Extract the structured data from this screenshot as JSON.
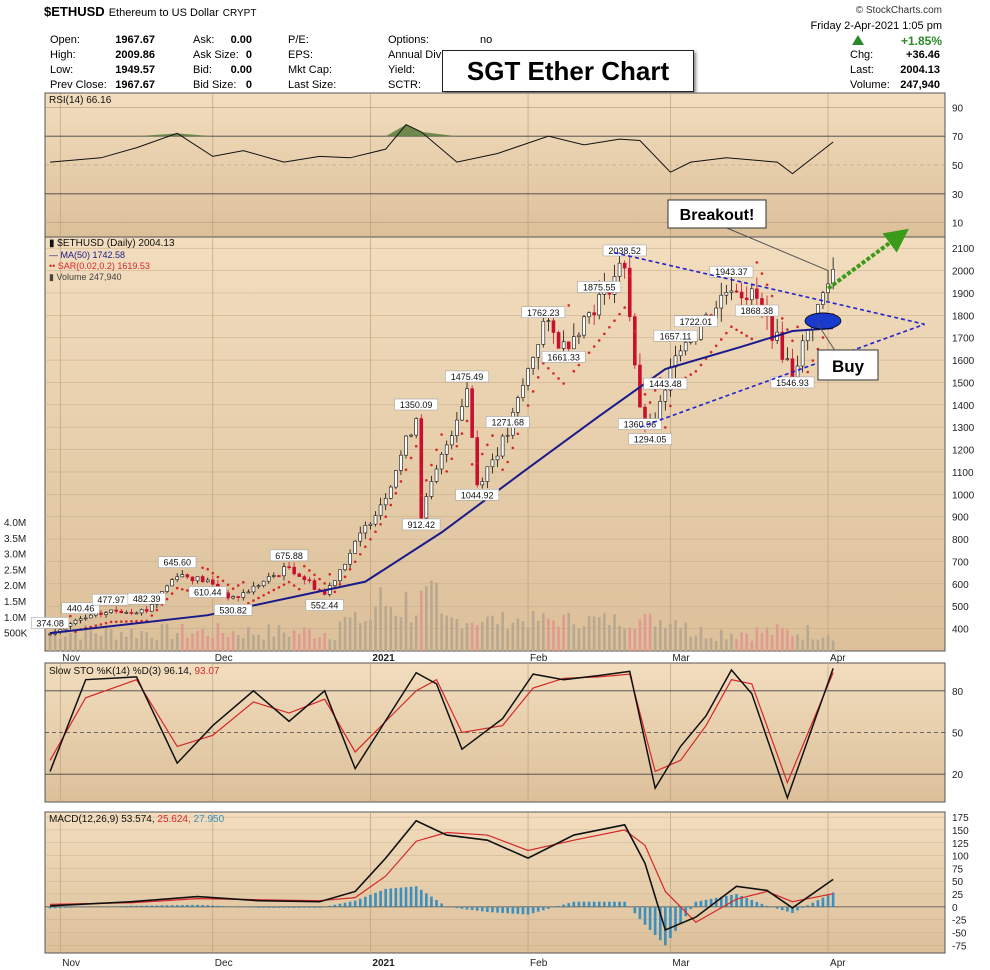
{
  "header": {
    "symbol": "$ETHUSD",
    "description": "Ethereum to US Dollar",
    "exchange": "CRYPT",
    "site": "© StockCharts.com",
    "datetime": "Friday   2-Apr-2021  1:05 pm",
    "title_box": "SGT Ether Chart",
    "quote_left": [
      {
        "label": "Open:",
        "value": "1967.67"
      },
      {
        "label": "High:",
        "value": "2009.86"
      },
      {
        "label": "Low:",
        "value": "1949.57"
      },
      {
        "label": "Prev Close:",
        "value": "1967.67"
      }
    ],
    "quote_mid": [
      {
        "label": "Ask:",
        "value": "0.00"
      },
      {
        "label": "Ask Size:",
        "value": "0"
      },
      {
        "label": "Bid:",
        "value": "0.00"
      },
      {
        "label": "Bid Size:",
        "value": "0"
      }
    ],
    "quote_right": [
      {
        "label": "P/E:",
        "value": ""
      },
      {
        "label": "EPS:",
        "value": ""
      },
      {
        "label": "Mkt Cap:",
        "value": ""
      },
      {
        "label": "Last Size:",
        "value": ""
      }
    ],
    "quote_far": [
      {
        "label": "Options:",
        "value": "no"
      },
      {
        "label": "Annual Div",
        "value": ""
      },
      {
        "label": "Yield:",
        "value": ""
      },
      {
        "label": "SCTR:",
        "value": ""
      }
    ],
    "change_pct": "+1.85%",
    "stats": [
      {
        "label": "Chg:",
        "value": "+36.46"
      },
      {
        "label": "Last:",
        "value": "2004.13"
      },
      {
        "label": "Volume:",
        "value": "247,940"
      }
    ]
  },
  "colors": {
    "panel_bg": "#e2c7a0",
    "panel_bg_top": "#f2ddbe",
    "rsi_fill": "#5b7a3a",
    "ma_line": "#1a1a8c",
    "sar_dots": "#d62728",
    "trend_lines": "#2222cc",
    "breakout_arrow": "#3a9a1a",
    "volume_up": "#b8a890",
    "volume_down": "#e09a90",
    "macd_hist": "#3a90c0",
    "signal_line": "#d62728"
  },
  "chart_data": [
    {
      "type": "line",
      "name": "RSI panel",
      "legend": "RSI(14) 66.16",
      "ylim": [
        0,
        100
      ],
      "y_ticks": [
        "90",
        "70",
        "50",
        "30",
        "10"
      ],
      "reference_levels": [
        70,
        30
      ],
      "x": [
        "2020-10-30",
        "2020-11-09",
        "2020-11-16",
        "2020-11-24",
        "2020-12-01",
        "2020-12-07",
        "2020-12-15",
        "2020-12-22",
        "2020-12-28",
        "2021-01-04",
        "2021-01-08",
        "2021-01-11",
        "2021-01-18",
        "2021-01-26",
        "2021-02-05",
        "2021-02-12",
        "2021-02-19",
        "2021-02-23",
        "2021-03-01",
        "2021-03-05",
        "2021-03-12",
        "2021-03-22",
        "2021-03-25",
        "2021-04-02"
      ],
      "values": [
        52,
        55,
        62,
        72,
        56,
        60,
        52,
        56,
        55,
        61,
        78,
        73,
        52,
        58,
        70,
        64,
        68,
        67,
        45,
        52,
        55,
        52,
        44,
        66
      ]
    },
    {
      "type": "line",
      "name": "price panel",
      "legend": [
        "$ETHUSD (Daily) 2004.13",
        "MA(50) 1742.58",
        "SAR(0.02,0.2) 1619.53",
        "Volume 247,940"
      ],
      "ylim": [
        300,
        2150
      ],
      "y_ticks": [
        "2100",
        "2000",
        "1900",
        "1800",
        "1700",
        "1600",
        "1500",
        "1400",
        "1300",
        "1200",
        "1100",
        "1000",
        "900",
        "800",
        "700",
        "600",
        "500",
        "400"
      ],
      "volume_ticks": [
        "4.0M",
        "3.5M",
        "3.0M",
        "2.5M",
        "2.0M",
        "1.5M",
        "1.0M",
        "500K"
      ],
      "x_labels": [
        "Nov",
        "Dec",
        "2021",
        "Feb",
        "Mar",
        "Apr"
      ],
      "price_points": [
        [
          "2020-10-30",
          374.08
        ],
        [
          "2020-11-05",
          440.46
        ],
        [
          "2020-11-11",
          477.97
        ],
        [
          "2020-11-18",
          482.39
        ],
        [
          "2020-11-24",
          645.6
        ],
        [
          "2020-11-30",
          610.44
        ],
        [
          "2020-12-05",
          530.82
        ],
        [
          "2020-12-16",
          675.88
        ],
        [
          "2020-12-23",
          552.44
        ],
        [
          "2021-01-04",
          1000
        ],
        [
          "2021-01-10",
          1350.09
        ],
        [
          "2021-01-11",
          912.42
        ],
        [
          "2021-01-20",
          1475.49
        ],
        [
          "2021-01-22",
          1044.92
        ],
        [
          "2021-01-28",
          1271.68
        ],
        [
          "2021-02-04",
          1762.23
        ],
        [
          "2021-02-08",
          1661.33
        ],
        [
          "2021-02-15",
          1875.55
        ],
        [
          "2021-02-20",
          2038.52
        ],
        [
          "2021-02-23",
          1360.96
        ],
        [
          "2021-02-25",
          1294.05
        ],
        [
          "2021-02-28",
          1443.48
        ],
        [
          "2021-03-02",
          1657.11
        ],
        [
          "2021-03-06",
          1722.01
        ],
        [
          "2021-03-13",
          1943.37
        ],
        [
          "2021-03-18",
          1868.38
        ],
        [
          "2021-03-25",
          1546.93
        ],
        [
          "2021-04-02",
          2004.13
        ]
      ],
      "ma50_points": [
        [
          "2020-10-30",
          380
        ],
        [
          "2020-11-30",
          460
        ],
        [
          "2020-12-31",
          610
        ],
        [
          "2021-01-15",
          830
        ],
        [
          "2021-01-31",
          1100
        ],
        [
          "2021-02-15",
          1350
        ],
        [
          "2021-02-28",
          1560
        ],
        [
          "2021-03-15",
          1660
        ],
        [
          "2021-03-25",
          1730
        ],
        [
          "2021-04-02",
          1742.58
        ]
      ],
      "price_labels": [
        "645.60",
        "610.44",
        "675.88",
        "477.97",
        "440.46",
        "482.39",
        "530.82",
        "552.44",
        "374.08",
        "1350.09",
        "912.42",
        "1475.49",
        "1044.92",
        "1207.77",
        "1271.68",
        "1494.84",
        "1762.23",
        "1661.33",
        "1875.55",
        "2038.52",
        "1360.96",
        "1294.05",
        "1657.11",
        "1443.48",
        "1722.01",
        "1943.37",
        "1868.38",
        "1546.93"
      ],
      "annotations": [
        "Breakout!",
        "Buy"
      ]
    },
    {
      "type": "line",
      "name": "Slow STO panel",
      "legend": [
        "Slow STO %K(14) %D(3) 96.14,",
        "93.07"
      ],
      "ylim": [
        0,
        100
      ],
      "y_ticks": [
        "80",
        "50",
        "20"
      ],
      "x": [
        "2020-10-30",
        "2020-11-06",
        "2020-11-16",
        "2020-11-24",
        "2020-12-01",
        "2020-12-09",
        "2020-12-16",
        "2020-12-23",
        "2020-12-29",
        "2021-01-10",
        "2021-01-14",
        "2021-01-19",
        "2021-01-27",
        "2021-02-02",
        "2021-02-08",
        "2021-02-15",
        "2021-02-21",
        "2021-02-26",
        "2021-03-03",
        "2021-03-08",
        "2021-03-13",
        "2021-03-17",
        "2021-03-24",
        "2021-04-02"
      ],
      "k_values": [
        22,
        88,
        90,
        28,
        55,
        80,
        58,
        80,
        24,
        93,
        85,
        38,
        60,
        92,
        88,
        91,
        94,
        10,
        40,
        62,
        95,
        78,
        3,
        96.14
      ],
      "d_values": [
        30,
        75,
        88,
        40,
        48,
        72,
        64,
        74,
        36,
        80,
        88,
        50,
        55,
        82,
        89,
        90,
        92,
        22,
        30,
        55,
        88,
        85,
        14,
        93.07
      ]
    },
    {
      "type": "bar",
      "name": "MACD panel",
      "legend": [
        "MACD(12,26,9) 53.574,",
        "25.624,",
        "27.950"
      ],
      "ylim": [
        -90,
        185
      ],
      "y_ticks": [
        "175",
        "150",
        "125",
        "100",
        "75",
        "50",
        "25",
        "0",
        "-25",
        "-50",
        "-75"
      ],
      "x": [
        "2020-10-30",
        "2020-11-15",
        "2020-11-28",
        "2020-12-10",
        "2020-12-22",
        "2020-12-29",
        "2021-01-04",
        "2021-01-10",
        "2021-01-16",
        "2021-01-24",
        "2021-02-01",
        "2021-02-10",
        "2021-02-20",
        "2021-02-24",
        "2021-02-28",
        "2021-03-06",
        "2021-03-14",
        "2021-03-20",
        "2021-03-25",
        "2021-04-02"
      ],
      "macd_values": [
        2,
        10,
        20,
        12,
        10,
        30,
        95,
        168,
        140,
        130,
        95,
        140,
        160,
        85,
        -45,
        -20,
        40,
        32,
        -2,
        53.574
      ],
      "signal_values": [
        5,
        8,
        16,
        14,
        12,
        18,
        60,
        128,
        145,
        140,
        110,
        130,
        150,
        120,
        30,
        -30,
        15,
        30,
        10,
        25.624
      ],
      "histogram": [
        -3,
        2,
        4,
        -2,
        -2,
        12,
        35,
        40,
        0,
        -10,
        -15,
        10,
        10,
        -35,
        -75,
        10,
        25,
        2,
        -12,
        27.95
      ]
    }
  ]
}
